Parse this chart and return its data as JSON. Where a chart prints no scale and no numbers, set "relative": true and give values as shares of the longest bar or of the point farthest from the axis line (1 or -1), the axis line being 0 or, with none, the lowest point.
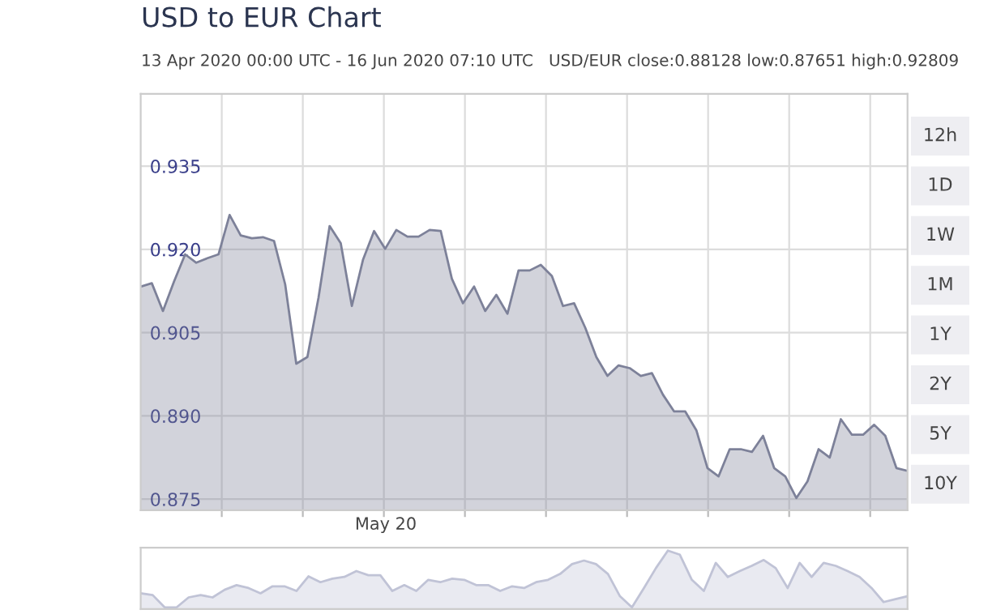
{
  "chart_data": [
    {
      "type": "area",
      "title": "USD to EUR Chart",
      "subtitle": "13 Apr 2020 00:00 UTC - 16 Jun 2020 07:10 UTC   USD/EUR close:0.88128 low:0.87651 high:0.92809",
      "annotations": [
        "May 20",
        "12h",
        "1D",
        "1W",
        "1M",
        "1Y",
        "2Y",
        "5Y",
        "10Y"
      ],
      "categories": [
        null,
        null,
        null,
        null,
        null,
        null,
        null,
        null,
        null,
        null,
        null,
        null,
        null,
        null,
        null,
        null,
        null,
        null,
        null,
        null,
        null,
        null,
        null,
        null,
        null,
        null,
        null,
        null,
        null,
        null,
        null,
        null,
        null,
        null,
        null,
        null,
        null,
        null,
        null,
        null,
        null,
        null,
        null,
        null,
        null,
        null,
        null,
        null,
        null,
        null,
        null,
        null,
        null,
        null,
        null,
        null,
        null,
        null,
        null,
        null,
        null,
        null,
        null,
        null,
        null,
        null,
        null,
        null,
        null,
        null
      ],
      "series": [
        {
          "color": "#7d8199",
          "values": [
            0.9133,
            0.9139,
            0.9089,
            0.9142,
            0.9191,
            0.9176,
            0.9184,
            0.9191,
            0.9262,
            0.9225,
            0.922,
            0.9222,
            0.9215,
            0.9137,
            0.8994,
            0.9006,
            0.9113,
            0.9242,
            0.9211,
            0.9098,
            0.9181,
            0.9233,
            0.9201,
            0.9235,
            0.9223,
            0.9223,
            0.9235,
            0.9233,
            0.9147,
            0.9103,
            0.9133,
            0.9089,
            0.9118,
            0.9084,
            0.9162,
            0.9162,
            0.9172,
            0.9152,
            0.9098,
            0.9103,
            0.9059,
            0.9006,
            0.8972,
            0.8991,
            0.8986,
            0.8972,
            0.8977,
            0.8938,
            0.8908,
            0.8908,
            0.8874,
            0.8806,
            0.8791,
            0.884,
            0.884,
            0.8835,
            0.8864,
            0.8806,
            0.8791,
            0.8752,
            0.8782,
            0.884,
            0.8825,
            0.8894,
            0.8866,
            0.8866,
            0.8884,
            0.8864,
            0.8806,
            0.8801
          ]
        }
      ],
      "ylim": [
        0.873,
        0.948
      ],
      "yticks": [
        {
          "value": 0.875,
          "label": "0.875"
        },
        {
          "value": 0.89,
          "label": "0.890"
        },
        {
          "value": 0.905,
          "label": "0.905"
        },
        {
          "value": 0.92,
          "label": "0.920"
        },
        {
          "value": 0.935,
          "label": "0.935"
        }
      ],
      "grid": true
    },
    {
      "type": "area",
      "relative": true,
      "categories": [
        null,
        null,
        null,
        null,
        null,
        null,
        null,
        null,
        null,
        null,
        null,
        null,
        null,
        null,
        null,
        null,
        null,
        null,
        null,
        null,
        null,
        null,
        null,
        null,
        null,
        null,
        null,
        null,
        null,
        null,
        null,
        null,
        null,
        null,
        null,
        null,
        null,
        null,
        null,
        null,
        null,
        null,
        null,
        null,
        null,
        null,
        null,
        null,
        null,
        null,
        null,
        null,
        null,
        null,
        null,
        null,
        null,
        null,
        null,
        null,
        null,
        null,
        null,
        null,
        null
      ],
      "series": [
        {
          "color": "#c0c3d6",
          "values": [
            0.27,
            0.24,
            0.03,
            0.03,
            0.2,
            0.24,
            0.2,
            0.33,
            0.41,
            0.36,
            0.27,
            0.39,
            0.39,
            0.31,
            0.56,
            0.46,
            0.52,
            0.55,
            0.65,
            0.58,
            0.58,
            0.31,
            0.41,
            0.31,
            0.5,
            0.46,
            0.52,
            0.5,
            0.41,
            0.41,
            0.31,
            0.39,
            0.36,
            0.46,
            0.5,
            0.6,
            0.77,
            0.83,
            0.77,
            0.6,
            0.22,
            0.03,
            0.36,
            0.7,
            1.0,
            0.93,
            0.5,
            0.31,
            0.79,
            0.55,
            0.65,
            0.74,
            0.84,
            0.7,
            0.36,
            0.79,
            0.55,
            0.79,
            0.74,
            0.65,
            0.55,
            0.36,
            0.12,
            0.17,
            0.22
          ]
        }
      ]
    }
  ]
}
